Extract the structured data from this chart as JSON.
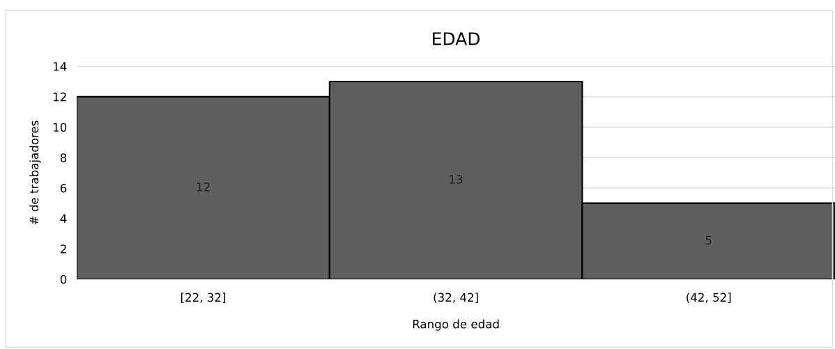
{
  "chart_data": {
    "type": "bar",
    "title": "EDAD",
    "xlabel": "Rango de edad",
    "ylabel": "# de trabajadores",
    "categories": [
      "[22, 32]",
      "(32, 42]",
      "(42, 52]"
    ],
    "values": [
      12,
      13,
      5
    ],
    "color": "#5f5f5f",
    "ylim": [
      0,
      14
    ],
    "yticks": [
      0,
      2,
      4,
      6,
      8,
      10,
      12,
      14
    ],
    "grid": "y",
    "data_labels": true
  }
}
